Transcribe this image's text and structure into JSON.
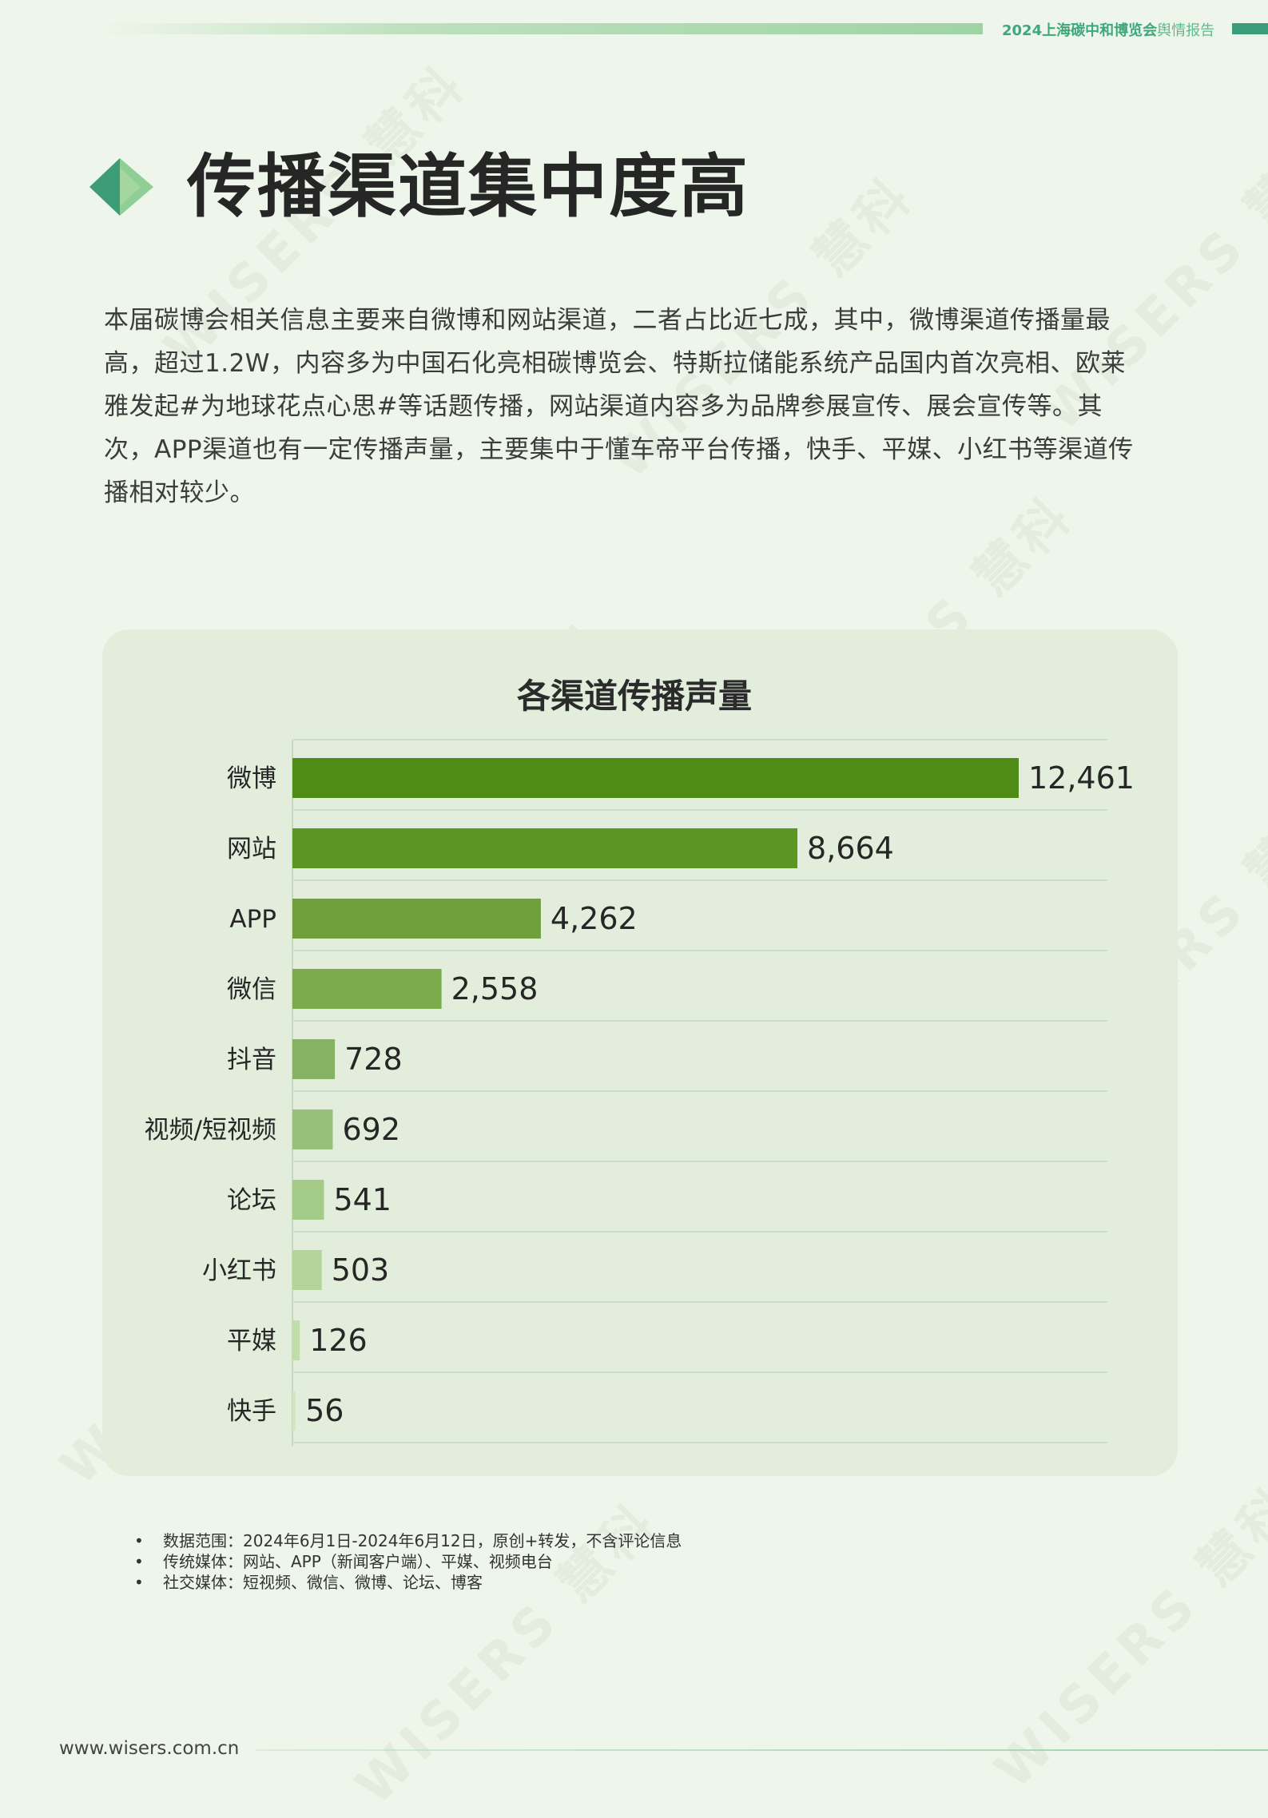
{
  "header": {
    "report_title_bold": "2024上海碳中和博览会",
    "report_title_light": "舆情报告"
  },
  "page_title": "传播渠道集中度高",
  "intro_text": "本届碳博会相关信息主要来自微博和网站渠道，二者占比近七成，其中，微博渠道传播量最高，超过1.2W，内容多为中国石化亮相碳博览会、特斯拉储能系统产品国内首次亮相、欧莱雅发起#为地球花点心思#等话题传播，网站渠道内容多为品牌参展宣传、展会宣传等。其次，APP渠道也有一定传播声量，主要集中于懂车帝平台传播，快手、平媒、小红书等渠道传播相对较少。",
  "chart_data": {
    "type": "bar",
    "orientation": "horizontal",
    "title": "各渠道传播声量",
    "categories": [
      "微博",
      "网站",
      "APP",
      "微信",
      "抖音",
      "视频/短视频",
      "论坛",
      "小红书",
      "平媒",
      "快手"
    ],
    "values": [
      12461,
      8664,
      4262,
      2558,
      728,
      692,
      541,
      503,
      126,
      56
    ],
    "value_labels": [
      "12,461",
      "8,664",
      "4,262",
      "2,558",
      "728",
      "692",
      "541",
      "503",
      "126",
      "56"
    ],
    "colors": [
      "#4e8b17",
      "#5b9625",
      "#6ea03b",
      "#7aab4d",
      "#84b363",
      "#98c07c",
      "#a5cb8a",
      "#b3d59c",
      "#c0ddaa",
      "#d3e6c4"
    ],
    "xlim": [
      0,
      14000
    ],
    "grid": true,
    "legend": "none"
  },
  "notes": [
    "数据范围：2024年6月1日-2024年6月12日，原创+转发，不含评论信息",
    "传统媒体：网站、APP（新闻客户端）、平媒、视频电台",
    "社交媒体：短视频、微信、微博、论坛、博客"
  ],
  "footer": {
    "url": "www.wisers.com.cn"
  },
  "watermark_text": "WISERS 慧科",
  "colors": {
    "page_bg": "#eef5ea",
    "card_bg": "#e2eedb",
    "accent_green": "#3a9c7a",
    "title_dark": "#262626"
  }
}
